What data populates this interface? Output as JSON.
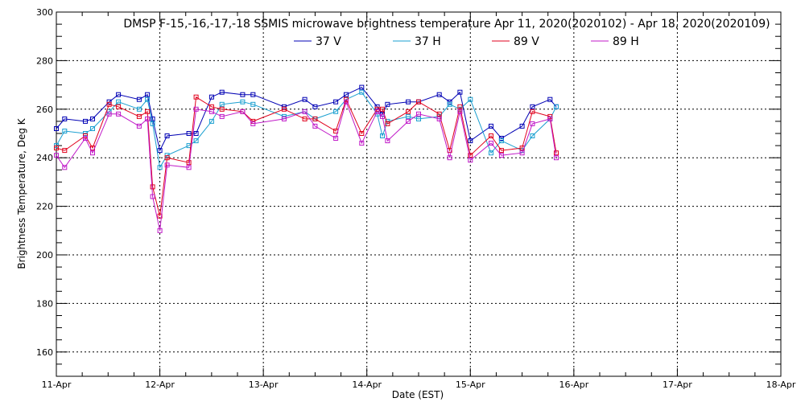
{
  "chart_data": {
    "type": "line",
    "title": "DMSP F-15,-16,-17,-18 SSMIS microwave brightness temperature Apr 11, 2020(2020102) - Apr 18, 2020(2020109)",
    "xlabel": "Date (EST)",
    "ylabel": "Brightness Temperature, Deg K",
    "xlim": [
      0,
      7
    ],
    "ylim": [
      150,
      300
    ],
    "x_ticks": [
      0,
      1,
      2,
      3,
      4,
      5,
      6,
      7
    ],
    "x_tick_labels": [
      "11-Apr",
      "12-Apr",
      "13-Apr",
      "14-Apr",
      "15-Apr",
      "16-Apr",
      "17-Apr",
      "18-Apr"
    ],
    "y_ticks": [
      160,
      180,
      200,
      220,
      240,
      260,
      280,
      300
    ],
    "grid": true,
    "legend_position": "top",
    "x": [
      0.0,
      0.08,
      0.28,
      0.35,
      0.51,
      0.6,
      0.8,
      0.88,
      0.93,
      1.0,
      1.07,
      1.28,
      1.35,
      1.5,
      1.6,
      1.8,
      1.9,
      2.2,
      2.4,
      2.5,
      2.7,
      2.8,
      2.95,
      3.1,
      3.15,
      3.2,
      3.4,
      3.5,
      3.7,
      3.8,
      3.9,
      4.0,
      4.2,
      4.3,
      4.5,
      4.6,
      4.77,
      4.83
    ],
    "series": [
      {
        "name": "37 V",
        "color": "#0000b4",
        "values": [
          252,
          256,
          255,
          256,
          263,
          266,
          264,
          266,
          256,
          243,
          249,
          250,
          250,
          265,
          267,
          266,
          266,
          261,
          264,
          261,
          263,
          266,
          269,
          261,
          258,
          262,
          263,
          263,
          266,
          263,
          267,
          247,
          253,
          248,
          253,
          261,
          264,
          261
        ]
      },
      {
        "name": "37 H",
        "color": "#1a9fd0",
        "values": [
          245,
          251,
          250,
          252,
          259,
          263,
          260,
          264,
          254,
          236,
          241,
          245,
          247,
          255,
          262,
          263,
          262,
          257,
          259,
          256,
          259,
          264,
          267,
          258,
          249,
          255,
          257,
          256,
          257,
          262,
          260,
          264,
          242,
          247,
          243,
          249,
          256,
          261
        ]
      },
      {
        "name": "89 V",
        "color": "#e0001c",
        "values": [
          244,
          243,
          249,
          244,
          262,
          261,
          257,
          259,
          228,
          216,
          240,
          238,
          265,
          261,
          260,
          259,
          255,
          260,
          256,
          256,
          251,
          264,
          250,
          260,
          260,
          254,
          259,
          263,
          258,
          243,
          261,
          241,
          249,
          243,
          244,
          259,
          257,
          242
        ]
      },
      {
        "name": "89 H",
        "color": "#c018c8",
        "values": [
          241,
          236,
          248,
          242,
          258,
          258,
          253,
          256,
          224,
          210,
          237,
          236,
          260,
          259,
          257,
          259,
          254,
          256,
          259,
          253,
          248,
          263,
          246,
          259,
          257,
          247,
          255,
          258,
          256,
          240,
          259,
          239,
          246,
          241,
          242,
          254,
          256,
          240
        ]
      }
    ]
  }
}
